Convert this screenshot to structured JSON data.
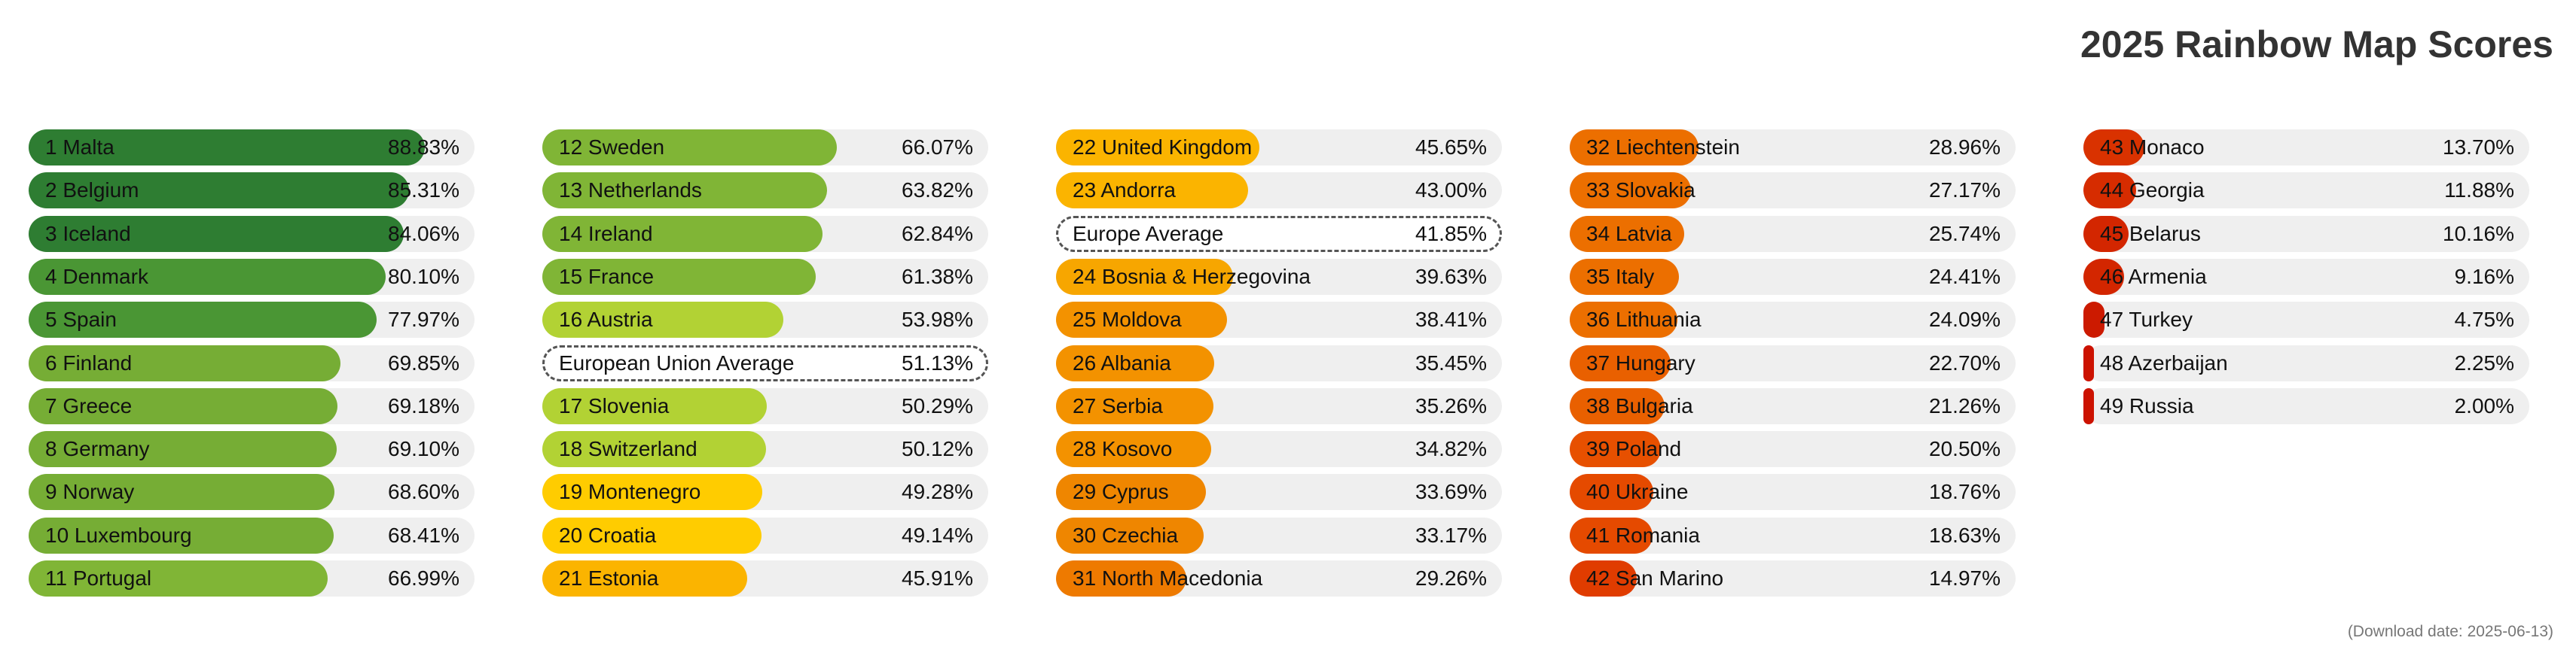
{
  "chart_data": {
    "type": "bar",
    "orientation": "horizontal",
    "title": "2025 Rainbow Map Scores",
    "footnote": "(Download date: 2025-06-13)",
    "x_range": [
      0,
      100
    ],
    "columns": [
      [
        {
          "label": "1 Malta",
          "value": 88.83,
          "display": "88.83%",
          "color": "#2e7d32"
        },
        {
          "label": "2 Belgium",
          "value": 85.31,
          "display": "85.31%",
          "color": "#2e7d32"
        },
        {
          "label": "3 Iceland",
          "value": 84.06,
          "display": "84.06%",
          "color": "#2e7d32"
        },
        {
          "label": "4 Denmark",
          "value": 80.1,
          "display": "80.10%",
          "color": "#4a9634"
        },
        {
          "label": "5 Spain",
          "value": 77.97,
          "display": "77.97%",
          "color": "#4a9634"
        },
        {
          "label": "6 Finland",
          "value": 69.85,
          "display": "69.85%",
          "color": "#76ad35"
        },
        {
          "label": "7 Greece",
          "value": 69.18,
          "display": "69.18%",
          "color": "#76ad35"
        },
        {
          "label": "8 Germany",
          "value": 69.1,
          "display": "69.10%",
          "color": "#76ad35"
        },
        {
          "label": "9 Norway",
          "value": 68.6,
          "display": "68.60%",
          "color": "#76ad35"
        },
        {
          "label": "10 Luxembourg",
          "value": 68.41,
          "display": "68.41%",
          "color": "#76ad35"
        },
        {
          "label": "11 Portugal",
          "value": 66.99,
          "display": "66.99%",
          "color": "#80b536"
        }
      ],
      [
        {
          "label": "12 Sweden",
          "value": 66.07,
          "display": "66.07%",
          "color": "#80b536"
        },
        {
          "label": "13 Netherlands",
          "value": 63.82,
          "display": "63.82%",
          "color": "#80b536"
        },
        {
          "label": "14 Ireland",
          "value": 62.84,
          "display": "62.84%",
          "color": "#80b536"
        },
        {
          "label": "15 France",
          "value": 61.38,
          "display": "61.38%",
          "color": "#80b536"
        },
        {
          "label": "16 Austria",
          "value": 53.98,
          "display": "53.98%",
          "color": "#b2d234"
        },
        {
          "label": "European Union Average",
          "value": 51.13,
          "display": "51.13%",
          "average": true
        },
        {
          "label": "17 Slovenia",
          "value": 50.29,
          "display": "50.29%",
          "color": "#b2d234"
        },
        {
          "label": "18 Switzerland",
          "value": 50.12,
          "display": "50.12%",
          "color": "#b2d234"
        },
        {
          "label": "19 Montenegro",
          "value": 49.28,
          "display": "49.28%",
          "color": "#ffcc00"
        },
        {
          "label": "20 Croatia",
          "value": 49.14,
          "display": "49.14%",
          "color": "#ffcc00"
        },
        {
          "label": "21 Estonia",
          "value": 45.91,
          "display": "45.91%",
          "color": "#fbb400"
        }
      ],
      [
        {
          "label": "22 United Kingdom",
          "value": 45.65,
          "display": "45.65%",
          "color": "#fbb400"
        },
        {
          "label": "23 Andorra",
          "value": 43.0,
          "display": "43.00%",
          "color": "#fbb400"
        },
        {
          "label": "Europe Average",
          "value": 41.85,
          "display": "41.85%",
          "average": true
        },
        {
          "label": "24 Bosnia & Herzegovina",
          "value": 39.63,
          "display": "39.63%",
          "color": "#f7a600"
        },
        {
          "label": "25 Moldova",
          "value": 38.41,
          "display": "38.41%",
          "color": "#f39200"
        },
        {
          "label": "26 Albania",
          "value": 35.45,
          "display": "35.45%",
          "color": "#f39200"
        },
        {
          "label": "27 Serbia",
          "value": 35.26,
          "display": "35.26%",
          "color": "#f39200"
        },
        {
          "label": "28 Kosovo",
          "value": 34.82,
          "display": "34.82%",
          "color": "#f39200"
        },
        {
          "label": "29 Cyprus",
          "value": 33.69,
          "display": "33.69%",
          "color": "#ef8600"
        },
        {
          "label": "30 Czechia",
          "value": 33.17,
          "display": "33.17%",
          "color": "#ef8600"
        },
        {
          "label": "31 North Macedonia",
          "value": 29.26,
          "display": "29.26%",
          "color": "#ee7a00"
        }
      ],
      [
        {
          "label": "32 Liechtenstein",
          "value": 28.96,
          "display": "28.96%",
          "color": "#ec6f00"
        },
        {
          "label": "33 Slovakia",
          "value": 27.17,
          "display": "27.17%",
          "color": "#ec6f00"
        },
        {
          "label": "34 Latvia",
          "value": 25.74,
          "display": "25.74%",
          "color": "#ec6f00"
        },
        {
          "label": "35 Italy",
          "value": 24.41,
          "display": "24.41%",
          "color": "#ec6f00"
        },
        {
          "label": "36 Lithuania",
          "value": 24.09,
          "display": "24.09%",
          "color": "#ec6f00"
        },
        {
          "label": "37 Hungary",
          "value": 22.7,
          "display": "22.70%",
          "color": "#e96000"
        },
        {
          "label": "38 Bulgaria",
          "value": 21.26,
          "display": "21.26%",
          "color": "#e96000"
        },
        {
          "label": "39 Poland",
          "value": 20.5,
          "display": "20.50%",
          "color": "#e75000"
        },
        {
          "label": "40 Ukraine",
          "value": 18.76,
          "display": "18.76%",
          "color": "#e54a00"
        },
        {
          "label": "41 Romania",
          "value": 18.63,
          "display": "18.63%",
          "color": "#e54a00"
        },
        {
          "label": "42 San Marino",
          "value": 14.97,
          "display": "14.97%",
          "color": "#e03c00"
        }
      ],
      [
        {
          "label": "43 Monaco",
          "value": 13.7,
          "display": "13.70%",
          "color": "#d93200"
        },
        {
          "label": "44 Georgia",
          "value": 11.88,
          "display": "11.88%",
          "color": "#d62c00"
        },
        {
          "label": "45 Belarus",
          "value": 10.16,
          "display": "10.16%",
          "color": "#d32600"
        },
        {
          "label": "46 Armenia",
          "value": 9.16,
          "display": "9.16%",
          "color": "#d32600"
        },
        {
          "label": "47 Turkey",
          "value": 4.75,
          "display": "4.75%",
          "color": "#cc1a00"
        },
        {
          "label": "48 Azerbaijan",
          "value": 2.25,
          "display": "2.25%",
          "color": "#cc1200"
        },
        {
          "label": "49 Russia",
          "value": 2.0,
          "display": "2.00%",
          "color": "#cc1200"
        }
      ]
    ]
  }
}
